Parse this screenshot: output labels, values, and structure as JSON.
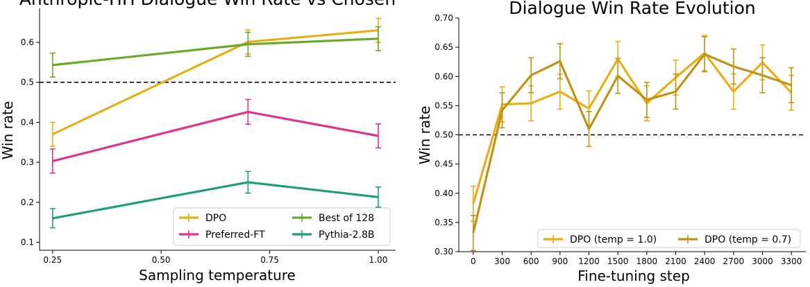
{
  "chart_data": [
    {
      "type": "line",
      "title": "Anthropic-HH Dialogue Win Rate vs Chosen",
      "xlabel": "Sampling temperature",
      "ylabel": "Win rate",
      "x": [
        0.25,
        0.7,
        1.0
      ],
      "xticks": [
        "0.25",
        "0.50",
        "0.75",
        "1.00"
      ],
      "xlim": [
        0.22,
        1.04
      ],
      "yticks": [
        "0.1",
        "0.2",
        "0.3",
        "0.4",
        "0.5",
        "0.6"
      ],
      "ylim": [
        0.08,
        0.685
      ],
      "reference_line": 0.5,
      "legend_position": "lower-right",
      "series": [
        {
          "name": "DPO",
          "color": "#e8ae17",
          "values": [
            0.37,
            0.601,
            0.63
          ],
          "errors": [
            0.03,
            0.03,
            0.03
          ]
        },
        {
          "name": "Best of 128",
          "color": "#6aa929",
          "values": [
            0.543,
            0.595,
            0.609
          ],
          "errors": [
            0.03,
            0.03,
            0.03
          ]
        },
        {
          "name": "Preferred-FT",
          "color": "#e0338d",
          "values": [
            0.303,
            0.426,
            0.366
          ],
          "errors": [
            0.03,
            0.031,
            0.03
          ]
        },
        {
          "name": "Pythia-2.8B",
          "color": "#1e9e7a",
          "values": [
            0.16,
            0.25,
            0.213
          ],
          "errors": [
            0.024,
            0.027,
            0.025
          ]
        }
      ]
    },
    {
      "type": "line",
      "title": "Dialogue Win Rate Evolution",
      "xlabel": "Fine-tuning step",
      "ylabel": "Win rate",
      "x": [
        0,
        300,
        600,
        900,
        1200,
        1500,
        1800,
        2100,
        2400,
        2700,
        3000,
        3300
      ],
      "xticks": [
        "0",
        "300",
        "600",
        "900",
        "1200",
        "1500",
        "1800",
        "2100",
        "2400",
        "2700",
        "3000",
        "3300"
      ],
      "xlim": [
        -150,
        3450
      ],
      "yticks": [
        "0.30",
        "0.35",
        "0.40",
        "0.45",
        "0.50",
        "0.55",
        "0.60",
        "0.65",
        "0.70"
      ],
      "ylim": [
        0.3,
        0.7
      ],
      "reference_line": 0.5,
      "legend_position": "lower-right",
      "series": [
        {
          "name": "DPO (temp = 1.0)",
          "color": "#e8ae17",
          "values": [
            0.382,
            0.552,
            0.554,
            0.574,
            0.545,
            0.63,
            0.554,
            0.598,
            0.64,
            0.574,
            0.624,
            0.572
          ],
          "errors": [
            0.03,
            0.03,
            0.03,
            0.03,
            0.03,
            0.03,
            0.03,
            0.03,
            0.03,
            0.03,
            0.03,
            0.03
          ]
        },
        {
          "name": "DPO (temp = 0.7)",
          "color": "#c19216",
          "values": [
            0.332,
            0.542,
            0.602,
            0.626,
            0.51,
            0.601,
            0.56,
            0.574,
            0.638,
            0.617,
            0.602,
            0.585
          ],
          "errors": [
            0.03,
            0.03,
            0.03,
            0.03,
            0.03,
            0.03,
            0.03,
            0.03,
            0.03,
            0.03,
            0.03,
            0.03
          ]
        }
      ]
    }
  ]
}
